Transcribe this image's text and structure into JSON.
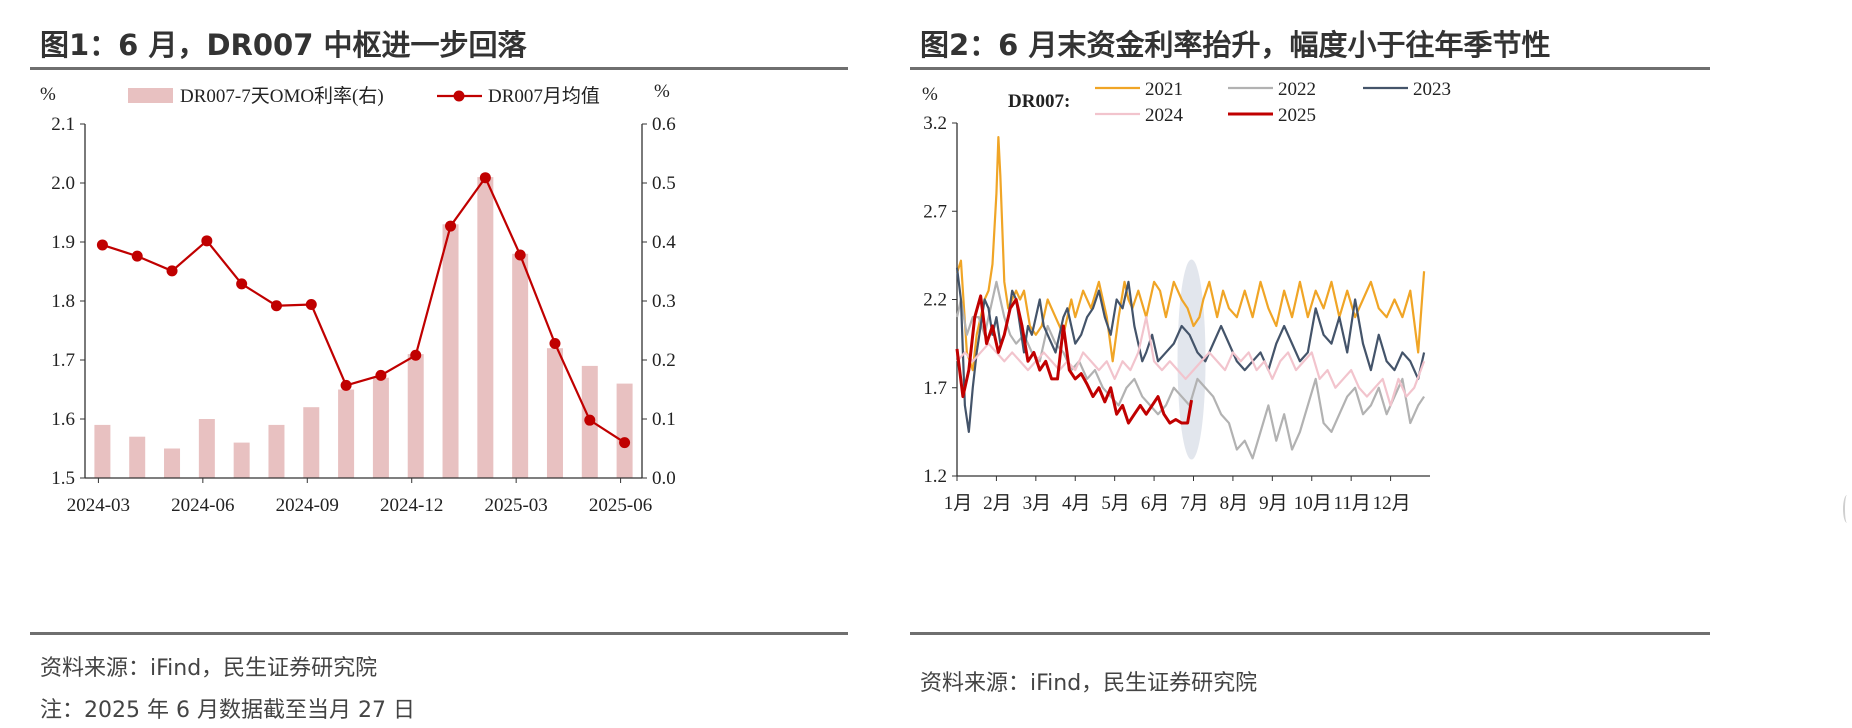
{
  "chart_data": [
    {
      "type": "bar+line",
      "title": "图1：6 月，DR007 中枢进一步回落",
      "left_axis": {
        "unit": "%",
        "min": 1.5,
        "max": 2.1,
        "ticks": [
          "1.5",
          "1.6",
          "1.7",
          "1.8",
          "1.9",
          "2.0",
          "2.1"
        ]
      },
      "right_axis": {
        "unit": "%",
        "min": 0.0,
        "max": 0.6,
        "ticks": [
          "0.0",
          "0.1",
          "0.2",
          "0.3",
          "0.4",
          "0.5",
          "0.6"
        ]
      },
      "categories": [
        "2024-03",
        "2024-04",
        "2024-05",
        "2024-06",
        "2024-07",
        "2024-08",
        "2024-09",
        "2024-10",
        "2024-11",
        "2024-12",
        "2025-01",
        "2025-02",
        "2025-03",
        "2025-04",
        "2025-05",
        "2025-06"
      ],
      "x_tick_labels": [
        "2024-03",
        "2024-06",
        "2024-09",
        "2024-12",
        "2025-03",
        "2025-06"
      ],
      "series": [
        {
          "name": "DR007-7天OMO利率(右)",
          "kind": "bar",
          "axis": "right",
          "color": "#e8c1c1",
          "values": [
            0.09,
            0.07,
            0.05,
            0.1,
            0.06,
            0.09,
            0.12,
            0.15,
            0.17,
            0.21,
            0.43,
            0.51,
            0.38,
            0.22,
            0.19,
            0.16
          ]
        },
        {
          "name": "DR007月均值",
          "kind": "line",
          "axis": "left",
          "color": "#c00000",
          "values": [
            1.895,
            1.876,
            1.851,
            1.902,
            1.829,
            1.792,
            1.794,
            1.657,
            1.674,
            1.708,
            1.927,
            2.009,
            1.878,
            1.728,
            1.598,
            1.56
          ]
        }
      ],
      "source": "资料来源：iFind，民生证券研究院",
      "note": "注：2025 年 6 月数据截至当月 27 日"
    },
    {
      "type": "line",
      "title": "图2：6 月末资金利率抬升，幅度小于往年季节性",
      "annotation": "DR007:",
      "y_axis": {
        "unit": "%",
        "min": 1.2,
        "max": 3.2,
        "ticks": [
          "1.2",
          "1.7",
          "2.2",
          "2.7",
          "3.2"
        ]
      },
      "x_tick_labels": [
        "1月",
        "2月",
        "3月",
        "4月",
        "5月",
        "6月",
        "7月",
        "8月",
        "9月",
        "10月",
        "11月",
        "12月"
      ],
      "highlight": "late June – early July",
      "series": [
        {
          "name": "2021",
          "color": "#f0a526",
          "x": [
            0,
            0.1,
            0.25,
            0.4,
            0.5,
            0.6,
            0.7,
            0.8,
            0.9,
            1.0,
            1.05,
            1.1,
            1.2,
            1.3,
            1.5,
            1.6,
            1.7,
            1.85,
            2.0,
            2.15,
            2.3,
            2.5,
            2.7,
            2.9,
            3.0,
            3.2,
            3.4,
            3.6,
            3.8,
            3.95,
            4.1,
            4.25,
            4.35,
            4.45,
            4.6,
            4.8,
            5.0,
            5.15,
            5.3,
            5.5,
            5.7,
            5.85,
            6.0,
            6.15,
            6.25,
            6.4,
            6.6,
            6.75,
            6.9,
            7.1,
            7.3,
            7.5,
            7.7,
            7.9,
            8.1,
            8.3,
            8.5,
            8.7,
            8.9,
            9.1,
            9.3,
            9.5,
            9.7,
            9.9,
            10.1,
            10.3,
            10.5,
            10.7,
            10.9,
            11.1,
            11.3,
            11.5,
            11.7,
            11.85
          ],
          "y": [
            2.35,
            2.42,
            1.9,
            1.8,
            2.0,
            2.1,
            2.2,
            2.25,
            2.4,
            2.8,
            3.12,
            2.9,
            2.3,
            2.15,
            2.25,
            2.2,
            2.25,
            2.05,
            2.0,
            2.05,
            2.2,
            2.1,
            2.0,
            2.2,
            2.1,
            2.25,
            2.15,
            2.3,
            2.1,
            1.85,
            2.1,
            2.3,
            2.2,
            2.15,
            2.25,
            2.1,
            2.3,
            2.25,
            2.1,
            2.3,
            2.2,
            2.15,
            2.05,
            2.1,
            2.2,
            2.3,
            2.1,
            2.25,
            2.15,
            2.1,
            2.25,
            2.1,
            2.3,
            2.15,
            2.05,
            2.25,
            2.1,
            2.3,
            2.1,
            2.25,
            2.15,
            2.3,
            2.1,
            2.25,
            2.1,
            2.2,
            2.3,
            2.15,
            2.1,
            2.2,
            2.1,
            2.25,
            1.9,
            2.36
          ]
        },
        {
          "name": "2022",
          "color": "#b2b2b2",
          "x": [
            0,
            0.1,
            0.25,
            0.4,
            0.55,
            0.7,
            0.85,
            1.0,
            1.1,
            1.2,
            1.35,
            1.5,
            1.7,
            1.9,
            2.1,
            2.3,
            2.5,
            2.7,
            2.9,
            3.1,
            3.3,
            3.5,
            3.7,
            3.9,
            4.1,
            4.3,
            4.5,
            4.7,
            4.9,
            5.1,
            5.3,
            5.5,
            5.7,
            5.9,
            6.1,
            6.3,
            6.5,
            6.7,
            6.9,
            7.1,
            7.3,
            7.5,
            7.7,
            7.9,
            8.1,
            8.3,
            8.5,
            8.7,
            8.9,
            9.1,
            9.3,
            9.5,
            9.7,
            9.9,
            10.1,
            10.3,
            10.5,
            10.7,
            10.9,
            11.1,
            11.3,
            11.5,
            11.7,
            11.85
          ],
          "y": [
            2.1,
            2.2,
            2.0,
            2.1,
            2.1,
            2.0,
            2.15,
            2.3,
            2.2,
            2.1,
            2.0,
            1.95,
            2.0,
            1.9,
            1.85,
            2.05,
            1.95,
            1.9,
            1.8,
            1.85,
            1.75,
            1.8,
            1.7,
            1.65,
            1.6,
            1.7,
            1.75,
            1.65,
            1.6,
            1.55,
            1.6,
            1.7,
            1.65,
            1.6,
            1.75,
            1.7,
            1.65,
            1.55,
            1.5,
            1.35,
            1.4,
            1.3,
            1.45,
            1.6,
            1.4,
            1.55,
            1.35,
            1.45,
            1.6,
            1.75,
            1.5,
            1.45,
            1.55,
            1.65,
            1.7,
            1.55,
            1.6,
            1.7,
            1.55,
            1.65,
            1.75,
            1.5,
            1.6,
            1.65
          ]
        },
        {
          "name": "2023",
          "color": "#44546a",
          "x": [
            0,
            0.1,
            0.2,
            0.3,
            0.4,
            0.5,
            0.6,
            0.7,
            0.8,
            0.9,
            1.0,
            1.1,
            1.2,
            1.3,
            1.4,
            1.5,
            1.6,
            1.7,
            1.8,
            1.9,
            2.0,
            2.1,
            2.2,
            2.3,
            2.4,
            2.5,
            2.6,
            2.7,
            2.8,
            2.9,
            3.0,
            3.15,
            3.3,
            3.45,
            3.6,
            3.75,
            3.9,
            4.05,
            4.2,
            4.35,
            4.5,
            4.6,
            4.7,
            4.8,
            4.95,
            5.1,
            5.3,
            5.5,
            5.7,
            5.9,
            6.1,
            6.3,
            6.5,
            6.7,
            6.9,
            7.1,
            7.3,
            7.5,
            7.7,
            7.9,
            8.1,
            8.3,
            8.5,
            8.7,
            8.9,
            9.1,
            9.3,
            9.5,
            9.7,
            9.9,
            10.1,
            10.3,
            10.5,
            10.7,
            10.9,
            11.1,
            11.3,
            11.5,
            11.7,
            11.85
          ],
          "y": [
            2.38,
            2.2,
            1.6,
            1.45,
            1.7,
            1.9,
            2.05,
            2.2,
            2.15,
            2.0,
            2.1,
            1.95,
            2.0,
            2.1,
            2.25,
            2.2,
            2.05,
            1.9,
            2.05,
            2.0,
            2.1,
            2.2,
            2.05,
            2.0,
            1.95,
            1.9,
            2.0,
            2.1,
            2.15,
            2.05,
            1.95,
            2.0,
            2.1,
            2.15,
            2.25,
            2.1,
            2.0,
            2.2,
            2.15,
            2.3,
            2.05,
            1.95,
            1.85,
            1.9,
            2.0,
            1.85,
            1.9,
            1.95,
            2.05,
            2.0,
            1.9,
            1.85,
            1.95,
            2.05,
            1.95,
            1.85,
            1.8,
            1.85,
            1.9,
            1.8,
            1.95,
            2.05,
            1.95,
            1.85,
            1.9,
            2.15,
            2.0,
            1.95,
            2.1,
            1.9,
            2.2,
            1.95,
            1.8,
            2.0,
            1.85,
            1.8,
            1.9,
            1.85,
            1.75,
            1.9
          ]
        },
        {
          "name": "2024",
          "color": "#f2c4cd",
          "x": [
            0,
            0.2,
            0.4,
            0.6,
            0.8,
            1.0,
            1.2,
            1.4,
            1.6,
            1.8,
            2.0,
            2.2,
            2.4,
            2.6,
            2.8,
            3.0,
            3.2,
            3.4,
            3.6,
            3.8,
            4.0,
            4.2,
            4.4,
            4.6,
            4.8,
            5.0,
            5.2,
            5.4,
            5.6,
            5.8,
            6.0,
            6.2,
            6.4,
            6.6,
            6.8,
            7.0,
            7.2,
            7.4,
            7.6,
            7.8,
            8.0,
            8.2,
            8.4,
            8.6,
            8.8,
            9.0,
            9.2,
            9.4,
            9.6,
            9.8,
            10.0,
            10.2,
            10.4,
            10.6,
            10.8,
            11.0,
            11.2,
            11.4,
            11.6,
            11.85
          ],
          "y": [
            1.85,
            1.9,
            1.85,
            1.9,
            1.95,
            1.9,
            1.85,
            1.9,
            1.85,
            1.8,
            1.85,
            1.9,
            1.85,
            1.8,
            1.85,
            1.8,
            1.9,
            1.85,
            1.8,
            1.85,
            1.75,
            1.85,
            1.8,
            1.9,
            2.1,
            1.85,
            1.8,
            1.85,
            1.8,
            1.75,
            1.8,
            1.85,
            1.9,
            1.85,
            1.8,
            1.9,
            1.85,
            1.9,
            1.8,
            1.85,
            1.75,
            1.85,
            1.9,
            1.8,
            1.85,
            1.9,
            1.75,
            1.8,
            1.7,
            1.75,
            1.8,
            1.7,
            1.65,
            1.7,
            1.75,
            1.6,
            1.75,
            1.65,
            1.7,
            1.85
          ]
        },
        {
          "name": "2025",
          "color": "#c00000",
          "x": [
            0,
            0.15,
            0.3,
            0.45,
            0.6,
            0.75,
            0.9,
            1.05,
            1.2,
            1.35,
            1.5,
            1.65,
            1.8,
            1.95,
            2.1,
            2.25,
            2.4,
            2.55,
            2.7,
            2.85,
            3.0,
            3.15,
            3.3,
            3.45,
            3.6,
            3.75,
            3.9,
            4.05,
            4.2,
            4.35,
            4.5,
            4.65,
            4.8,
            4.95,
            5.1,
            5.25,
            5.4,
            5.55,
            5.7,
            5.85,
            5.95
          ],
          "y": [
            1.92,
            1.65,
            1.8,
            2.1,
            2.22,
            1.95,
            2.05,
            1.9,
            2.0,
            2.15,
            2.2,
            2.05,
            1.85,
            1.9,
            1.8,
            1.85,
            1.75,
            1.75,
            2.05,
            1.8,
            1.75,
            1.78,
            1.72,
            1.65,
            1.7,
            1.62,
            1.7,
            1.55,
            1.6,
            1.5,
            1.55,
            1.6,
            1.55,
            1.6,
            1.65,
            1.55,
            1.5,
            1.52,
            1.5,
            1.5,
            1.63
          ]
        }
      ],
      "source": "资料来源：iFind，民生证券研究院"
    }
  ]
}
